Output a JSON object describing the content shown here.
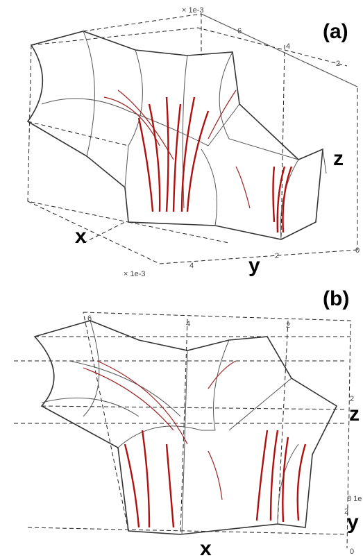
{
  "panels": [
    {
      "label": "(a)",
      "x_label": "x",
      "y_label": "y",
      "z_label": "z",
      "ticks": [
        "× 1e-3",
        "6",
        "4",
        "2",
        "× 1e-3",
        "4",
        "2",
        "0"
      ]
    },
    {
      "label": "(b)",
      "x_label": "x",
      "y_label": "y",
      "z_label": "z",
      "ticks": [
        "6",
        "4",
        "2",
        "2",
        "8 1e",
        "2",
        "0"
      ]
    }
  ]
}
